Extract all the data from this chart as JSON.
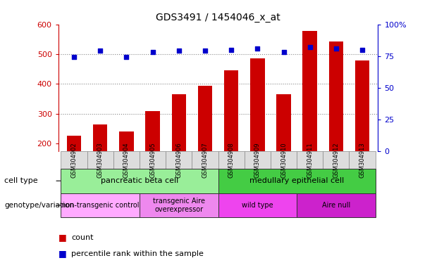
{
  "title": "GDS3491 / 1454046_x_at",
  "samples": [
    "GSM304902",
    "GSM304903",
    "GSM304904",
    "GSM304905",
    "GSM304906",
    "GSM304907",
    "GSM304908",
    "GSM304909",
    "GSM304910",
    "GSM304911",
    "GSM304912",
    "GSM304913"
  ],
  "counts": [
    228,
    265,
    240,
    310,
    365,
    395,
    445,
    487,
    365,
    578,
    543,
    478
  ],
  "percentiles": [
    74,
    79,
    74,
    78,
    79,
    79,
    80,
    81,
    78,
    82,
    81,
    80
  ],
  "ylim_left": [
    175,
    600
  ],
  "ylim_right": [
    0,
    100
  ],
  "yticks_left": [
    200,
    300,
    400,
    500,
    600
  ],
  "yticks_right": [
    0,
    25,
    50,
    75,
    100
  ],
  "yticklabels_right": [
    "0",
    "25",
    "50",
    "75",
    "100%"
  ],
  "bar_color": "#cc0000",
  "dot_color": "#0000cc",
  "cell_type_groups": [
    {
      "label": "pancreatic beta cell",
      "start": 0,
      "end": 6,
      "color": "#99ee99"
    },
    {
      "label": "medullary epithelial cell",
      "start": 6,
      "end": 12,
      "color": "#44cc44"
    }
  ],
  "genotype_groups": [
    {
      "label": "non-transgenic control",
      "start": 0,
      "end": 3,
      "color": "#ffaaff"
    },
    {
      "label": "transgenic Aire\noverexpressor",
      "start": 3,
      "end": 6,
      "color": "#ee88ee"
    },
    {
      "label": "wild type",
      "start": 6,
      "end": 9,
      "color": "#ee44ee"
    },
    {
      "label": "Aire null",
      "start": 9,
      "end": 12,
      "color": "#cc22cc"
    }
  ],
  "grid_dotted_at": [
    300,
    400,
    500
  ],
  "left_axis_color": "#cc0000",
  "right_axis_color": "#0000cc",
  "xtick_bg_color": "#dddddd",
  "xtick_border_color": "#888888"
}
